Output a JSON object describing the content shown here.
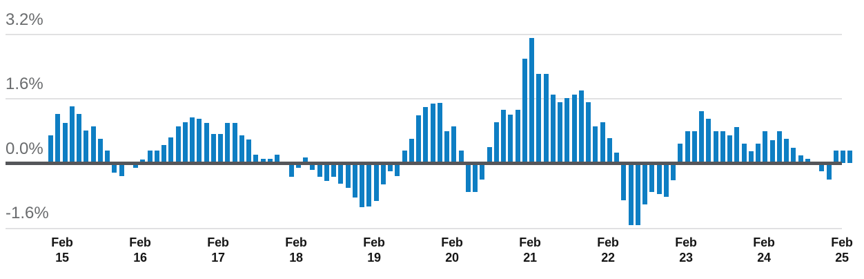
{
  "chart_data": {
    "type": "bar",
    "title": "",
    "ylabel": "",
    "xlabel": "",
    "unit": "percent",
    "bar_color": "#0e7ec3",
    "baseline_color": "#55565a",
    "gridline_color": "#e1e1e2",
    "grid": "horizontal",
    "legend": "none",
    "ylim": [
      -2.0,
      3.4
    ],
    "y_ticks": [
      {
        "text": "3.2%",
        "value": 3.2
      },
      {
        "text": "1.6%",
        "value": 1.6
      },
      {
        "text": "0.0%",
        "value": 0.0
      },
      {
        "text": "-1.6%",
        "value": -1.6
      }
    ],
    "x_tick_labels": [
      {
        "line1": "Feb",
        "line2": "15"
      },
      {
        "line1": "Feb",
        "line2": "16"
      },
      {
        "line1": "Feb",
        "line2": "17"
      },
      {
        "line1": "Feb",
        "line2": "18"
      },
      {
        "line1": "Feb",
        "line2": "19"
      },
      {
        "line1": "Feb",
        "line2": "20"
      },
      {
        "line1": "Feb",
        "line2": "21"
      },
      {
        "line1": "Feb",
        "line2": "22"
      },
      {
        "line1": "Feb",
        "line2": "23"
      },
      {
        "line1": "Feb",
        "line2": "24"
      },
      {
        "line1": "Feb",
        "line2": "25"
      }
    ],
    "values": [
      0.7,
      1.22,
      1.0,
      1.42,
      1.22,
      0.82,
      0.91,
      0.6,
      0.31,
      -0.2,
      -0.28,
      0.03,
      -0.08,
      0.1,
      0.31,
      0.31,
      0.45,
      0.64,
      0.91,
      1.02,
      1.13,
      1.1,
      1.0,
      0.73,
      0.73,
      1.0,
      1.0,
      0.7,
      0.59,
      0.21,
      0.11,
      0.11,
      0.21,
      0.03,
      -0.3,
      -0.08,
      0.15,
      -0.13,
      -0.3,
      -0.41,
      -0.3,
      -0.47,
      -0.58,
      -0.81,
      -1.06,
      -1.03,
      -0.89,
      -0.49,
      -0.17,
      -0.28,
      0.31,
      0.6,
      1.19,
      1.4,
      1.48,
      1.5,
      0.8,
      0.92,
      0.31,
      -0.68,
      -0.68,
      -0.37,
      0.41,
      1.01,
      1.32,
      1.2,
      1.33,
      2.6,
      3.11,
      2.21,
      2.21,
      1.71,
      1.51,
      1.61,
      1.71,
      1.81,
      1.51,
      0.91,
      1.01,
      0.62,
      0.27,
      -0.88,
      -1.49,
      -1.49,
      -0.99,
      -0.68,
      -0.72,
      -0.79,
      -0.39,
      0.49,
      0.79,
      0.79,
      1.29,
      1.1,
      0.79,
      0.79,
      0.7,
      0.9,
      0.49,
      0.3,
      0.49,
      0.79,
      0.58,
      0.8,
      0.61,
      0.39,
      0.2,
      0.11,
      0.05,
      -0.16,
      -0.36,
      0.31,
      0.31,
      0.31
    ]
  }
}
